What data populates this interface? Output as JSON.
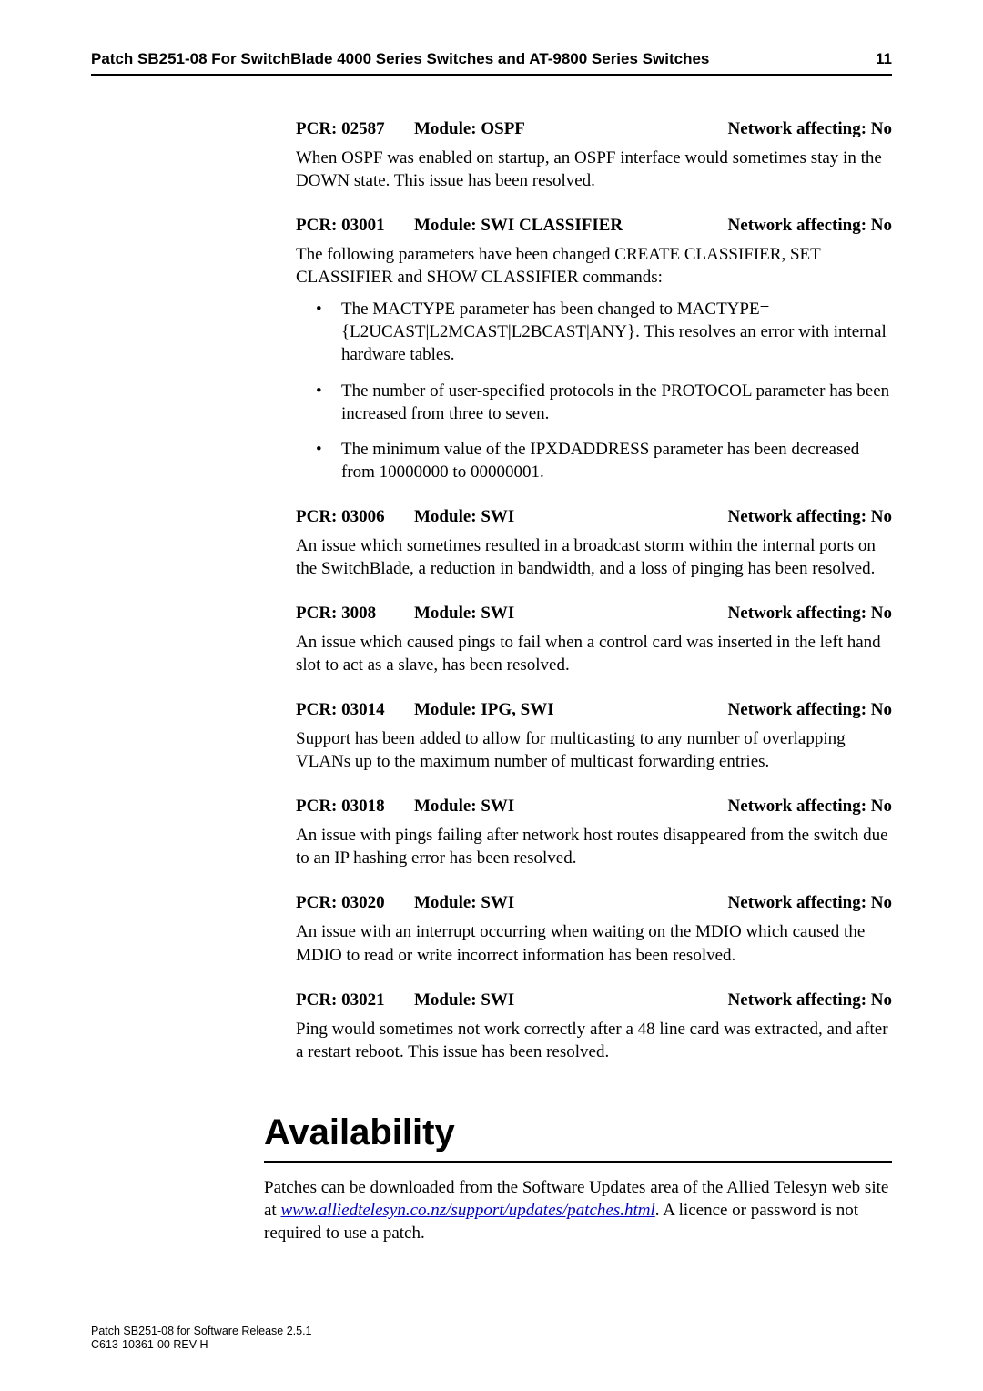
{
  "header": {
    "title": "Patch SB251-08 For SwitchBlade 4000 Series Switches and AT-9800 Series Switches",
    "page_no": "11"
  },
  "entries": [
    {
      "pcr": "PCR: 02587",
      "module": "Module: OSPF",
      "net": "Network affecting: No",
      "body": "When OSPF was enabled on startup, an OSPF interface would sometimes stay in the DOWN state. This issue has been resolved."
    },
    {
      "pcr": "PCR: 03001",
      "module": "Module: SWI CLASSIFIER",
      "net": "Network affecting: No",
      "body": "The following parameters have been changed CREATE CLASSIFIER, SET CLASSIFIER and SHOW CLASSIFIER commands:",
      "bullets": [
        "The MACTYPE parameter has been changed to MACTYPE={L2UCAST|L2MCAST|L2BCAST|ANY}. This resolves an error with internal hardware tables.",
        "The number of user-specified protocols in the PROTOCOL parameter has been increased from three to seven.",
        "The minimum value of the IPXDADDRESS parameter has been decreased from 10000000 to 00000001."
      ]
    },
    {
      "pcr": "PCR: 03006",
      "module": "Module: SWI",
      "net": "Network affecting: No",
      "body": "An issue which sometimes resulted in a broadcast storm within the internal ports on the SwitchBlade, a reduction in bandwidth, and a loss of pinging has been resolved."
    },
    {
      "pcr": "PCR: 3008",
      "module": "Module: SWI",
      "net": "Network affecting: No",
      "body": "An issue which caused pings to fail when a control card was inserted in the left hand slot to act as a slave, has been resolved."
    },
    {
      "pcr": "PCR: 03014",
      "module": "Module: IPG, SWI",
      "net": "Network affecting: No",
      "body": "Support has been added to allow for multicasting to any number of overlapping VLANs up to the maximum number of multicast forwarding entries."
    },
    {
      "pcr": "PCR: 03018",
      "module": "Module: SWI",
      "net": "Network affecting: No",
      "body": "An issue with pings failing after network host routes disappeared from the switch due to an IP hashing error has been resolved."
    },
    {
      "pcr": "PCR: 03020",
      "module": "Module: SWI",
      "net": "Network affecting: No",
      "body": "An issue with an interrupt occurring when waiting on the MDIO which caused the MDIO to read or write incorrect information has been resolved."
    },
    {
      "pcr": "PCR: 03021",
      "module": "Module: SWI",
      "net": "Network affecting: No",
      "body": "Ping would sometimes not work correctly after a 48 line card was extracted, and after a restart reboot. This issue has been resolved."
    }
  ],
  "availability": {
    "title": "Availability",
    "text_before": "Patches can be downloaded from the Software Updates area of the Allied Telesyn web site at ",
    "link_text": "www.alliedtelesyn.co.nz/support/updates/patches.html",
    "text_after": ". A licence or password is not required to use a patch."
  },
  "footer": {
    "line1": "Patch SB251-08 for Software Release 2.5.1",
    "line2": "C613-10361-00 REV H"
  }
}
